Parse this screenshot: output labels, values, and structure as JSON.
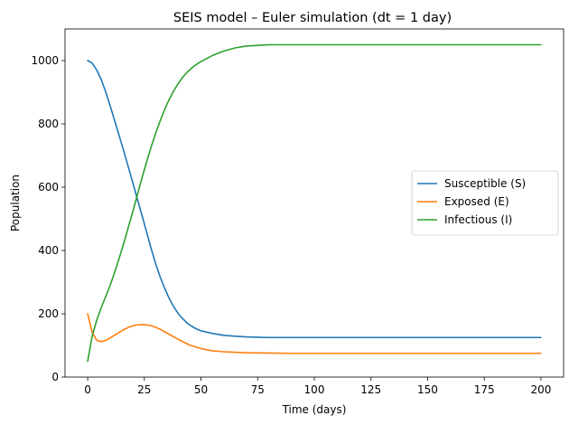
{
  "chart_data": {
    "type": "line",
    "title": "SEIS model – Euler simulation (dt = 1 day)",
    "xlabel": "Time (days)",
    "ylabel": "Population",
    "xlim": [
      -10,
      210
    ],
    "ylim": [
      0,
      1100
    ],
    "xticks": [
      0,
      25,
      50,
      75,
      100,
      125,
      150,
      175,
      200
    ],
    "yticks": [
      0,
      200,
      400,
      600,
      800,
      1000
    ],
    "grid": false,
    "legend_position": "center-right",
    "series": [
      {
        "name": "Susceptible (S)",
        "color": "#1f77b4",
        "x": [
          0,
          2,
          4,
          6,
          8,
          10,
          12,
          14,
          16,
          18,
          20,
          22,
          24,
          26,
          28,
          30,
          32,
          34,
          36,
          38,
          40,
          42,
          44,
          46,
          48,
          50,
          55,
          60,
          65,
          70,
          75,
          80,
          90,
          100,
          125,
          150,
          175,
          200
        ],
        "values": [
          1000,
          992,
          970,
          940,
          900,
          855,
          808,
          760,
          712,
          662,
          612,
          560,
          510,
          458,
          406,
          358,
          316,
          280,
          248,
          222,
          200,
          184,
          170,
          160,
          152,
          146,
          138,
          132,
          129,
          127,
          126,
          125,
          125,
          125,
          125,
          125,
          125,
          125
        ]
      },
      {
        "name": "Exposed (E)",
        "color": "#ff7f0e",
        "x": [
          0,
          2,
          4,
          6,
          8,
          10,
          12,
          14,
          16,
          18,
          20,
          22,
          24,
          26,
          28,
          30,
          32,
          34,
          36,
          38,
          40,
          45,
          50,
          55,
          60,
          70,
          80,
          90,
          100,
          125,
          150,
          175,
          200
        ],
        "values": [
          200,
          140,
          116,
          112,
          116,
          124,
          133,
          142,
          150,
          157,
          162,
          165,
          166,
          165,
          162,
          157,
          151,
          143,
          135,
          127,
          119,
          101,
          90,
          83,
          80,
          77,
          76,
          75,
          75,
          75,
          75,
          75,
          75
        ]
      },
      {
        "name": "Infectious (I)",
        "color": "#2ca02c",
        "x": [
          0,
          2,
          4,
          6,
          8,
          10,
          12,
          14,
          16,
          18,
          20,
          22,
          24,
          26,
          28,
          30,
          32,
          34,
          36,
          38,
          40,
          42,
          44,
          46,
          48,
          50,
          55,
          60,
          65,
          70,
          75,
          80,
          90,
          100,
          125,
          150,
          175,
          200
        ],
        "values": [
          50,
          130,
          180,
          220,
          255,
          292,
          333,
          378,
          425,
          475,
          525,
          578,
          630,
          680,
          727,
          770,
          810,
          846,
          878,
          905,
          928,
          948,
          964,
          977,
          988,
          997,
          1016,
          1030,
          1040,
          1046,
          1048,
          1050,
          1050,
          1050,
          1050,
          1050,
          1050,
          1050
        ]
      }
    ]
  }
}
